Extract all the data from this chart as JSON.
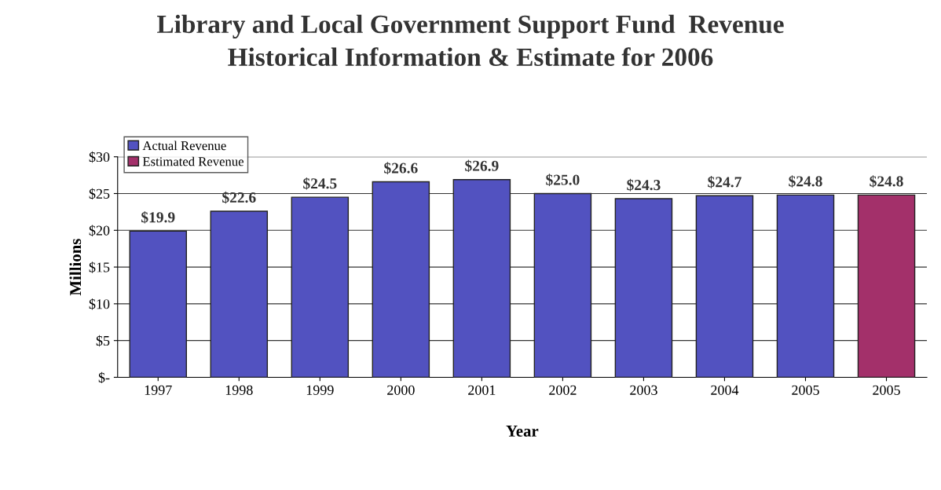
{
  "chart_data": {
    "type": "bar",
    "title": "Library and Local Government Support Fund  Revenue\nHistorical Information & Estimate for 2006",
    "xlabel": "Year",
    "ylabel": "Millions",
    "categories": [
      "1997",
      "1998",
      "1999",
      "2000",
      "2001",
      "2002",
      "2003",
      "2004",
      "2005",
      "2005"
    ],
    "stacked": true,
    "series": [
      {
        "name": "Actual Revenue",
        "color": "#5252c0",
        "values": [
          19.9,
          22.6,
          24.5,
          26.6,
          26.9,
          25.0,
          24.3,
          24.7,
          24.8,
          null
        ],
        "value_labels": [
          "$19.9",
          "$22.6",
          "$24.5",
          "$26.6",
          "$26.9",
          "$25.0",
          "$24.3",
          "$24.7",
          "$24.8",
          null
        ]
      },
      {
        "name": "Estimated Revenue",
        "color": "#a3306a",
        "values": [
          null,
          null,
          null,
          null,
          null,
          null,
          null,
          null,
          null,
          24.8
        ],
        "value_labels": [
          null,
          null,
          null,
          null,
          null,
          null,
          null,
          null,
          null,
          "$24.8"
        ]
      }
    ],
    "ylim": [
      0,
      30
    ],
    "yticks": [
      {
        "value": 0,
        "label": "$-"
      },
      {
        "value": 5,
        "label": "$5"
      },
      {
        "value": 10,
        "label": "$10"
      },
      {
        "value": 15,
        "label": "$15"
      },
      {
        "value": 20,
        "label": "$20"
      },
      {
        "value": 25,
        "label": "$25"
      },
      {
        "value": 30,
        "label": "$30"
      }
    ],
    "grid": "y",
    "legend": "top left"
  }
}
